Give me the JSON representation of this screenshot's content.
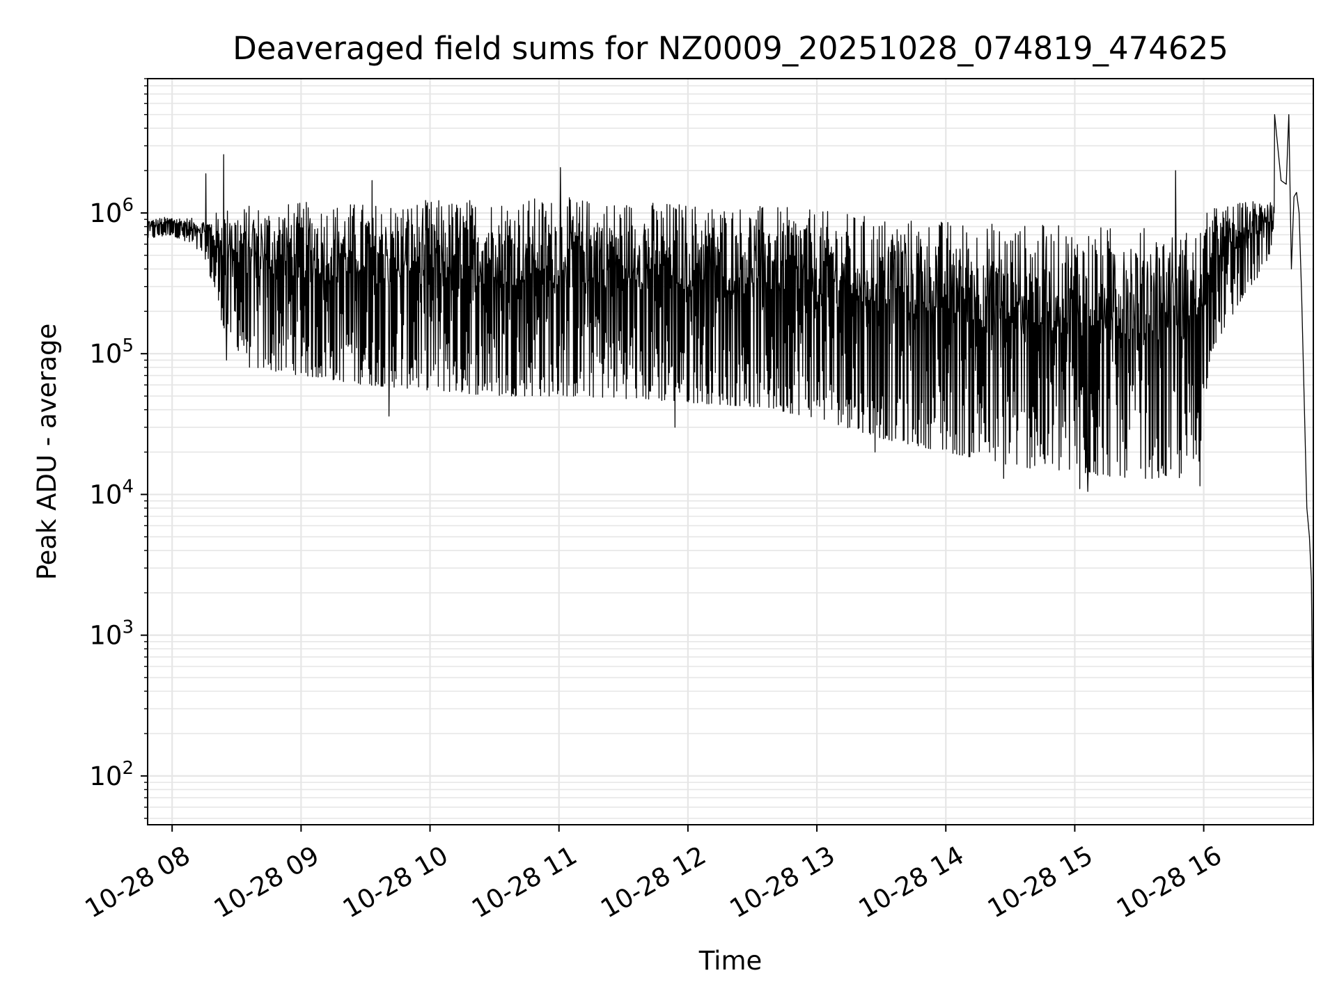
{
  "chart_data": {
    "type": "line",
    "title": "Deaveraged field sums for NZ0009_20251028_074819_474625",
    "xlabel": "Time",
    "ylabel": "Peak ADU - average",
    "yscale": "log",
    "ylim": [
      45,
      9000000
    ],
    "xlim_hours": [
      7.81,
      16.85
    ],
    "grid": true,
    "x_ticks": [
      {
        "hour": 8,
        "label": "10-28 08"
      },
      {
        "hour": 9,
        "label": "10-28 09"
      },
      {
        "hour": 10,
        "label": "10-28 10"
      },
      {
        "hour": 11,
        "label": "10-28 11"
      },
      {
        "hour": 12,
        "label": "10-28 12"
      },
      {
        "hour": 13,
        "label": "10-28 13"
      },
      {
        "hour": 14,
        "label": "10-28 14"
      },
      {
        "hour": 15,
        "label": "10-28 15"
      },
      {
        "hour": 16,
        "label": "10-28 16"
      }
    ],
    "y_ticks": [
      {
        "value": 100,
        "base": "10",
        "exp": "2"
      },
      {
        "value": 1000,
        "base": "10",
        "exp": "3"
      },
      {
        "value": 10000,
        "base": "10",
        "exp": "4"
      },
      {
        "value": 100000,
        "base": "10",
        "exp": "5"
      },
      {
        "value": 1000000,
        "base": "10",
        "exp": "6"
      }
    ],
    "series": [
      {
        "name": "Peak ADU - average",
        "color": "#000000",
        "envelope": {
          "hours": [
            7.81,
            8.0,
            8.25,
            8.4,
            8.6,
            9.0,
            9.5,
            10.0,
            10.5,
            11.0,
            11.5,
            12.0,
            12.5,
            13.0,
            13.5,
            14.0,
            14.5,
            15.0,
            15.5,
            15.95,
            16.05,
            16.3,
            16.55
          ],
          "upper": [
            900000,
            950000,
            900000,
            1100000,
            1150000,
            1200000,
            1200000,
            1250000,
            1300000,
            1300000,
            1250000,
            1200000,
            1150000,
            1050000,
            950000,
            900000,
            850000,
            820000,
            800000,
            780000,
            1100000,
            1200000,
            1350000
          ],
          "lower": [
            650000,
            700000,
            500000,
            150000,
            80000,
            70000,
            60000,
            55000,
            50000,
            50000,
            48000,
            45000,
            42000,
            35000,
            25000,
            20000,
            16000,
            14000,
            13000,
            13000,
            100000,
            250000,
            500000
          ]
        },
        "spikes": [
          {
            "hour": 8.26,
            "value": 1900000
          },
          {
            "hour": 8.4,
            "value": 2600000
          },
          {
            "hour": 8.42,
            "value": 90000
          },
          {
            "hour": 9.55,
            "value": 1700000
          },
          {
            "hour": 9.68,
            "value": 36000
          },
          {
            "hour": 11.01,
            "value": 2100000
          },
          {
            "hour": 11.9,
            "value": 30000
          },
          {
            "hour": 13.45,
            "value": 20000
          },
          {
            "hour": 14.45,
            "value": 13000
          },
          {
            "hour": 15.04,
            "value": 11000
          },
          {
            "hour": 15.1,
            "value": 10500
          },
          {
            "hour": 15.78,
            "value": 2000000
          },
          {
            "hour": 15.97,
            "value": 11500
          },
          {
            "hour": 16.65,
            "value": 5000000
          }
        ],
        "tail": {
          "hours": [
            16.55,
            16.6,
            16.64,
            16.66,
            16.68,
            16.7,
            16.72,
            16.74,
            16.76,
            16.8,
            16.82,
            16.835,
            16.85
          ],
          "values": [
            1500000,
            1700000,
            1600000,
            5000000,
            400000,
            1300000,
            1400000,
            1000000,
            250000,
            8000,
            5000,
            2500,
            80
          ]
        }
      }
    ]
  }
}
